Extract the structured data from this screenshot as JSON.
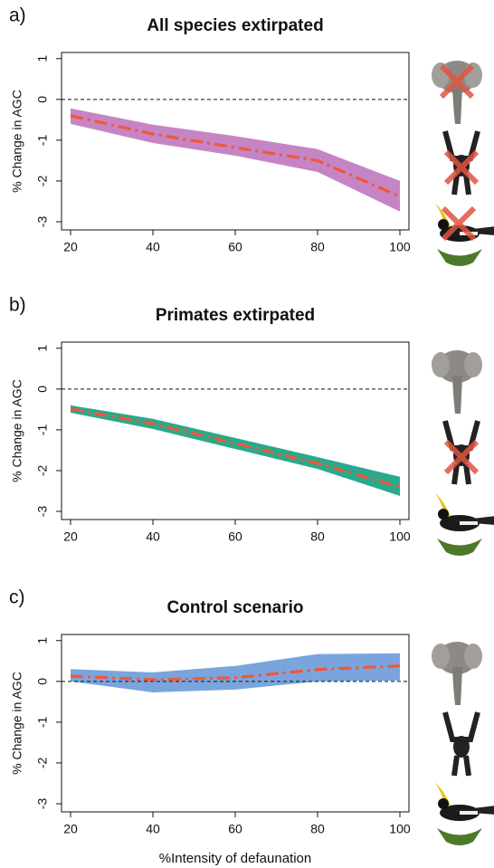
{
  "chart_data": [
    {
      "type": "line",
      "panel": "a)",
      "title": "All species extirpated",
      "ylabel": "% Change in AGC",
      "x": [
        20,
        40,
        60,
        80,
        100
      ],
      "xlim": [
        17.8,
        102.2
      ],
      "xticks": [
        20,
        40,
        60,
        80,
        100
      ],
      "ylim": [
        -3.2,
        1.15
      ],
      "yticks": [
        1,
        0,
        -1,
        -2,
        -3
      ],
      "hline": 0,
      "line_color": "#f0573a",
      "band_color": "#c585c5",
      "values": [
        -0.4,
        -0.85,
        -1.18,
        -1.5,
        -2.38
      ],
      "upper": [
        -0.22,
        -0.62,
        -0.9,
        -1.22,
        -2.0
      ],
      "lower": [
        -0.6,
        -1.07,
        -1.38,
        -1.78,
        -2.75
      ]
    },
    {
      "type": "line",
      "panel": "b)",
      "title": "Primates extirpated",
      "ylabel": "% Change in AGC",
      "x": [
        20,
        40,
        60,
        80,
        100
      ],
      "xlim": [
        17.8,
        102.2
      ],
      "xticks": [
        20,
        40,
        60,
        80,
        100
      ],
      "ylim": [
        -3.2,
        1.15
      ],
      "yticks": [
        1,
        0,
        -1,
        -2,
        -3
      ],
      "hline": 0,
      "line_color": "#f0573a",
      "band_color": "#2aa98c",
      "values": [
        -0.49,
        -0.85,
        -1.33,
        -1.82,
        -2.4
      ],
      "upper": [
        -0.4,
        -0.73,
        -1.2,
        -1.67,
        -2.15
      ],
      "lower": [
        -0.58,
        -0.98,
        -1.47,
        -1.96,
        -2.62
      ]
    },
    {
      "type": "line",
      "panel": "c)",
      "title": "Control scenario",
      "ylabel": "% Change in AGC",
      "xlabel": "%Intensity of defaunation",
      "x": [
        20,
        40,
        60,
        80,
        100
      ],
      "xlim": [
        17.8,
        102.2
      ],
      "xticks": [
        20,
        40,
        60,
        80,
        100
      ],
      "ylim": [
        -3.2,
        1.15
      ],
      "yticks": [
        1,
        0,
        -1,
        -2,
        -3
      ],
      "hline": 0,
      "line_color": "#f0573a",
      "band_color": "#7aa5dc",
      "values": [
        0.13,
        0.04,
        0.09,
        0.29,
        0.38
      ],
      "upper": [
        0.3,
        0.22,
        0.38,
        0.67,
        0.69
      ],
      "lower": [
        0.0,
        -0.27,
        -0.2,
        0.0,
        0.02
      ]
    }
  ]
}
